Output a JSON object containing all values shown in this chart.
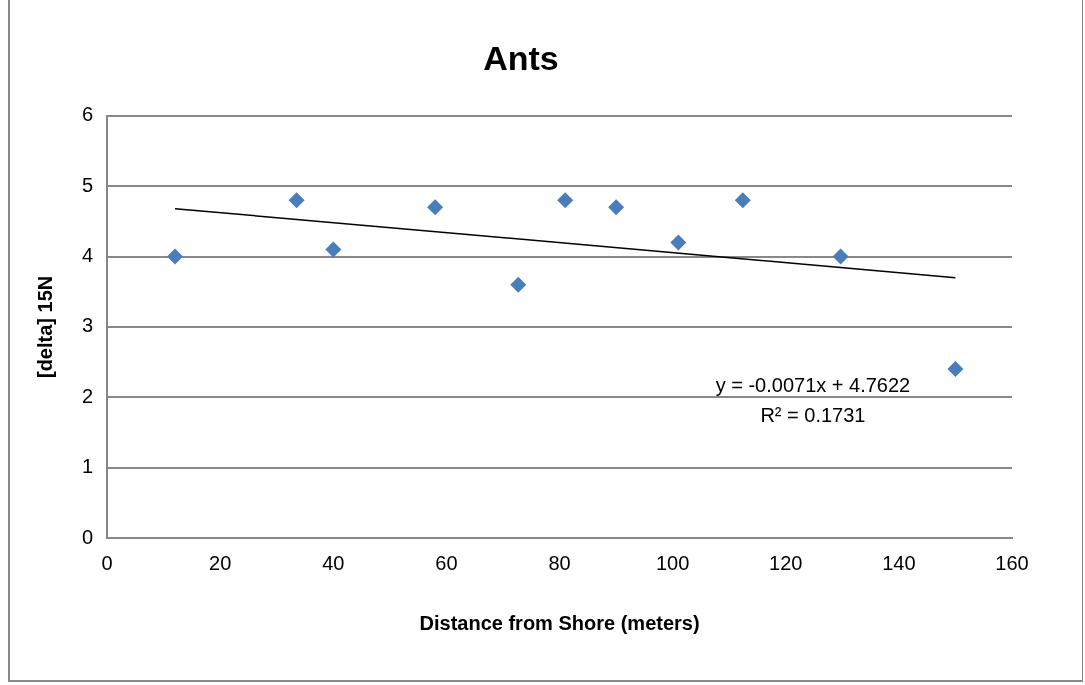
{
  "chart_data": {
    "type": "scatter",
    "title": "Ants",
    "xlabel": "Distance from Shore (meters)",
    "ylabel": "[delta] 15N",
    "x": [
      12,
      33.5,
      40,
      58,
      72.7,
      81,
      90,
      101,
      112.4,
      129.7,
      150
    ],
    "series": [
      {
        "color": "#4a7ebb",
        "values": [
          4.0,
          4.8,
          4.1,
          4.7,
          3.6,
          4.8,
          4.7,
          4.2,
          4.8,
          4.0,
          2.4
        ]
      },
      {
        "type": "line",
        "marker": "none",
        "color": "#000000",
        "x": [
          12,
          150
        ],
        "values": [
          4.68,
          3.7
        ]
      }
    ],
    "xlim": [
      0,
      160
    ],
    "xticks": [
      0,
      20,
      40,
      60,
      80,
      100,
      120,
      140,
      160
    ],
    "ylim": [
      0,
      6
    ],
    "yticks": [
      0,
      1,
      2,
      3,
      4,
      5,
      6
    ],
    "grid": "y",
    "legend": false,
    "marker": "diamond",
    "annotations": [
      "y = -0.0071x + 4.7622",
      "R² = 0.1731"
    ]
  }
}
